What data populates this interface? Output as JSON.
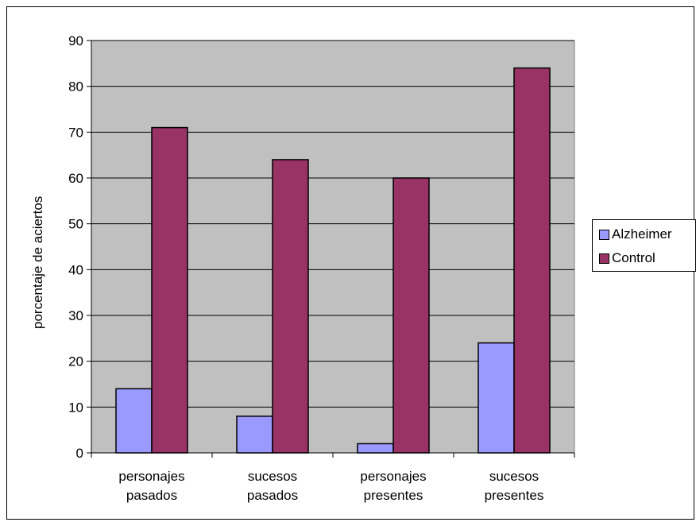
{
  "chart_data": {
    "type": "bar",
    "title": "",
    "xlabel": "",
    "ylabel": "porcentaje de aciertos",
    "ylim": [
      0,
      90
    ],
    "yticks": [
      0,
      10,
      20,
      30,
      40,
      50,
      60,
      70,
      80,
      90
    ],
    "grid": true,
    "legend_position": "right",
    "plot_background": "#c0c0c0",
    "categories": [
      [
        "personajes",
        "pasados"
      ],
      [
        "sucesos",
        "pasados"
      ],
      [
        "personajes",
        "presentes"
      ],
      [
        "sucesos",
        "presentes"
      ]
    ],
    "series": [
      {
        "name": "Alzheimer",
        "color": "#9999ff",
        "values": [
          14,
          8,
          2,
          24
        ]
      },
      {
        "name": "Control",
        "color": "#993366",
        "values": [
          71,
          64,
          60,
          84
        ]
      }
    ]
  }
}
